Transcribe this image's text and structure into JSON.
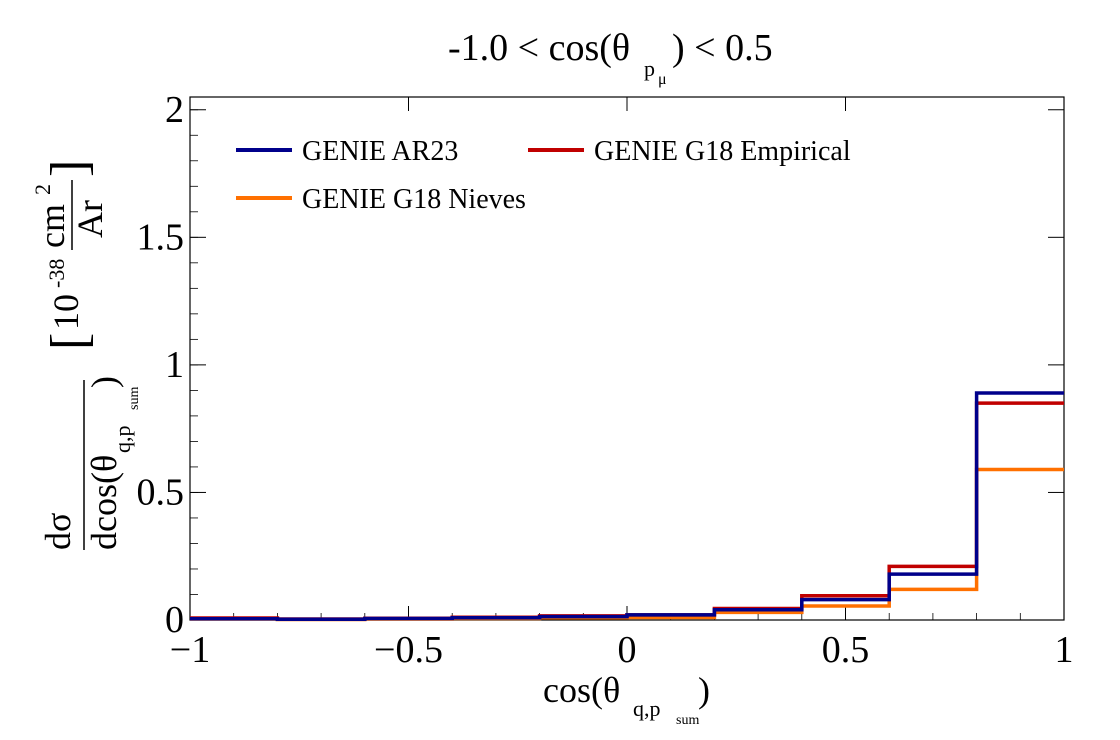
{
  "chart_data": {
    "type": "line",
    "step": true,
    "title": "-1.0 < cos(θ p⃗μ) < 0.5",
    "xlabel": "cos(θ q⃗,p⃗sum)",
    "ylabel": "dσ / dcos(θ q⃗,p⃗sum) [10^-38 cm² / Ar]",
    "xlim": [
      -1,
      1
    ],
    "ylim": [
      0,
      2.05
    ],
    "x_ticks": [
      "−1",
      "−0.5",
      "0",
      "0.5",
      "1"
    ],
    "y_ticks": [
      "0",
      "0.5",
      "1",
      "1.5",
      "2"
    ],
    "bin_edges": [
      -1.0,
      -0.8,
      -0.6,
      -0.4,
      -0.2,
      0.0,
      0.2,
      0.4,
      0.6,
      0.8,
      1.0
    ],
    "legend_position": "top",
    "grid": false,
    "series": [
      {
        "name": "GENIE AR23",
        "color": "#00008b",
        "values": [
          0.005,
          0.003,
          0.006,
          0.009,
          0.013,
          0.02,
          0.04,
          0.08,
          0.18,
          0.89
        ]
      },
      {
        "name": "GENIE G18 Empirical",
        "color": "#c00000",
        "values": [
          0.008,
          0.004,
          0.007,
          0.011,
          0.016,
          0.02,
          0.045,
          0.095,
          0.21,
          0.85
        ]
      },
      {
        "name": "GENIE G18 Nieves",
        "color": "#ff7000",
        "values": [
          0.004,
          0.002,
          0.004,
          0.006,
          0.009,
          0.01,
          0.03,
          0.055,
          0.12,
          0.59
        ]
      }
    ]
  },
  "texts": {
    "title_main": "-1.0 < cos(θ",
    "title_sub": "p",
    "title_sub2": "μ",
    "title_end": ") < 0.5",
    "ylabel_num": "dσ",
    "ylabel_den": "dcos(θ",
    "ylabel_den_sub": "q,p",
    "ylabel_den_sub2": "sum",
    "ylabel_den_end": ")",
    "ylabel_unit_exp": "10",
    "ylabel_unit_pow": "-38",
    "ylabel_unit_num": "cm",
    "ylabel_unit_num_pow": "2",
    "ylabel_unit_den": "Ar",
    "xlabel_main": "cos(θ",
    "xlabel_sub": "q,p",
    "xlabel_sub2": "sum",
    "xlabel_end": ")"
  }
}
